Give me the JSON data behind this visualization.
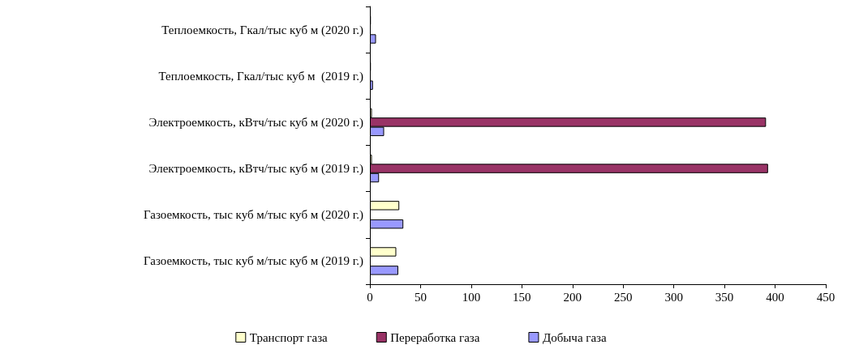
{
  "chart_data": {
    "type": "bar",
    "orientation": "horizontal",
    "categories": [
      "Теплоемкость, Гкал/тыс куб м (2020 г.)",
      "Теплоемкость, Гкал/тыс куб м  (2019 г.)",
      "Электроемкость, кВтч/тыс куб м (2020 г.)",
      "Электроемкость, кВтч/тыс куб м (2019 г.)",
      "Газоемкость, тыс куб м/тыс куб м (2020 г.)",
      "Газоемкость, тыс куб м/тыс куб м (2019 г.)"
    ],
    "series": [
      {
        "name": "Транспорт газа",
        "color": "#ffffcc",
        "values": [
          1,
          1,
          2,
          2,
          29,
          26
        ]
      },
      {
        "name": "Переработка газа",
        "color": "#993366",
        "values": [
          null,
          null,
          391,
          393,
          null,
          null
        ]
      },
      {
        "name": "Добыча газа",
        "color": "#9999ff",
        "values": [
          6,
          3,
          14,
          9,
          33,
          28
        ]
      }
    ],
    "xlim": [
      0,
      450
    ],
    "xticks": [
      0,
      50,
      100,
      150,
      200,
      250,
      300,
      350,
      400,
      450
    ],
    "grid": false,
    "legend": "bottom"
  }
}
